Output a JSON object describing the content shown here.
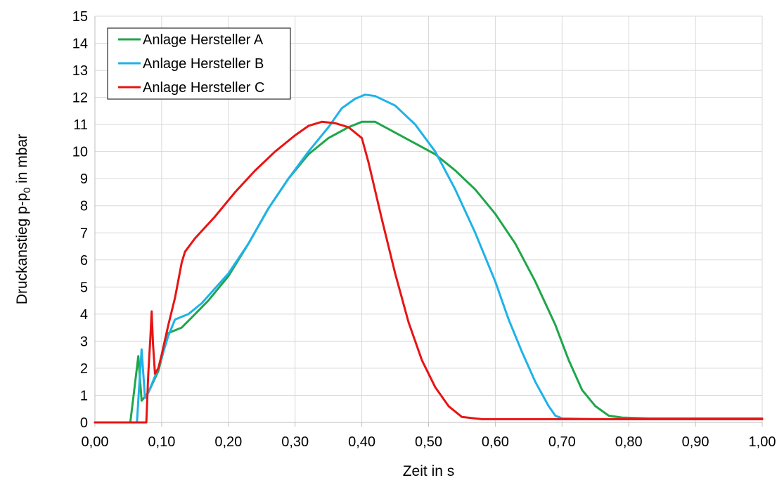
{
  "chart_data": {
    "type": "line",
    "title": "",
    "xlabel": "Zeit in s",
    "ylabel_parts": [
      "Druckanstieg p-p",
      "0",
      " in mbar"
    ],
    "xlim": [
      0,
      1.0
    ],
    "ylim": [
      0,
      15
    ],
    "grid": true,
    "legend_position": "top-left",
    "x_ticks": [
      0,
      0.1,
      0.2,
      0.3,
      0.4,
      0.5,
      0.6,
      0.7,
      0.8,
      0.9,
      1.0
    ],
    "x_tick_labels": [
      "0,00",
      "0,10",
      "0,20",
      "0,30",
      "0,40",
      "0,50",
      "0,60",
      "0,70",
      "0,80",
      "0,90",
      "1,00"
    ],
    "y_ticks": [
      0,
      1,
      2,
      3,
      4,
      5,
      6,
      7,
      8,
      9,
      10,
      11,
      12,
      13,
      14,
      15
    ],
    "y_tick_labels": [
      "0",
      "1",
      "2",
      "3",
      "4",
      "5",
      "6",
      "7",
      "8",
      "9",
      "10",
      "11",
      "12",
      "13",
      "14",
      "15"
    ],
    "series": [
      {
        "name": "Anlage Hersteller A",
        "color": "#1fa64a",
        "points": [
          [
            0,
            0
          ],
          [
            0.053,
            0
          ],
          [
            0.058,
            1.0
          ],
          [
            0.065,
            2.45
          ],
          [
            0.07,
            0.8
          ],
          [
            0.08,
            1.1
          ],
          [
            0.095,
            1.9
          ],
          [
            0.11,
            3.3
          ],
          [
            0.13,
            3.5
          ],
          [
            0.15,
            4.0
          ],
          [
            0.17,
            4.5
          ],
          [
            0.2,
            5.4
          ],
          [
            0.23,
            6.6
          ],
          [
            0.26,
            7.9
          ],
          [
            0.29,
            9.0
          ],
          [
            0.32,
            9.9
          ],
          [
            0.35,
            10.5
          ],
          [
            0.38,
            10.9
          ],
          [
            0.4,
            11.1
          ],
          [
            0.42,
            11.1
          ],
          [
            0.45,
            10.7
          ],
          [
            0.48,
            10.3
          ],
          [
            0.51,
            9.9
          ],
          [
            0.54,
            9.3
          ],
          [
            0.57,
            8.6
          ],
          [
            0.6,
            7.7
          ],
          [
            0.63,
            6.6
          ],
          [
            0.66,
            5.2
          ],
          [
            0.69,
            3.6
          ],
          [
            0.71,
            2.3
          ],
          [
            0.73,
            1.2
          ],
          [
            0.75,
            0.6
          ],
          [
            0.77,
            0.25
          ],
          [
            0.79,
            0.18
          ],
          [
            0.83,
            0.15
          ],
          [
            1.0,
            0.15
          ]
        ]
      },
      {
        "name": "Anlage Hersteller B",
        "color": "#1eb2e8",
        "points": [
          [
            0,
            0
          ],
          [
            0.063,
            0
          ],
          [
            0.066,
            1.2
          ],
          [
            0.07,
            2.7
          ],
          [
            0.075,
            0.9
          ],
          [
            0.08,
            1.1
          ],
          [
            0.095,
            2.0
          ],
          [
            0.11,
            3.2
          ],
          [
            0.12,
            3.8
          ],
          [
            0.14,
            4.0
          ],
          [
            0.16,
            4.4
          ],
          [
            0.2,
            5.5
          ],
          [
            0.23,
            6.6
          ],
          [
            0.26,
            7.9
          ],
          [
            0.29,
            9.0
          ],
          [
            0.32,
            10.0
          ],
          [
            0.35,
            10.9
          ],
          [
            0.37,
            11.6
          ],
          [
            0.39,
            11.95
          ],
          [
            0.405,
            12.1
          ],
          [
            0.42,
            12.05
          ],
          [
            0.45,
            11.7
          ],
          [
            0.48,
            11.0
          ],
          [
            0.51,
            10.0
          ],
          [
            0.54,
            8.6
          ],
          [
            0.57,
            7.0
          ],
          [
            0.6,
            5.2
          ],
          [
            0.62,
            3.8
          ],
          [
            0.64,
            2.6
          ],
          [
            0.66,
            1.5
          ],
          [
            0.68,
            0.6
          ],
          [
            0.69,
            0.25
          ],
          [
            0.7,
            0.15
          ],
          [
            0.75,
            0.12
          ],
          [
            1.0,
            0.12
          ]
        ]
      },
      {
        "name": "Anlage Hersteller C",
        "color": "#e81414",
        "points": [
          [
            0,
            0
          ],
          [
            0.077,
            0
          ],
          [
            0.08,
            1.8
          ],
          [
            0.083,
            3.1
          ],
          [
            0.085,
            4.1
          ],
          [
            0.087,
            2.9
          ],
          [
            0.09,
            1.8
          ],
          [
            0.095,
            2.0
          ],
          [
            0.1,
            2.5
          ],
          [
            0.11,
            3.6
          ],
          [
            0.12,
            4.6
          ],
          [
            0.13,
            5.9
          ],
          [
            0.135,
            6.3
          ],
          [
            0.15,
            6.8
          ],
          [
            0.18,
            7.6
          ],
          [
            0.21,
            8.5
          ],
          [
            0.24,
            9.3
          ],
          [
            0.27,
            10.0
          ],
          [
            0.3,
            10.6
          ],
          [
            0.32,
            10.95
          ],
          [
            0.34,
            11.1
          ],
          [
            0.36,
            11.05
          ],
          [
            0.38,
            10.9
          ],
          [
            0.4,
            10.5
          ],
          [
            0.41,
            9.6
          ],
          [
            0.43,
            7.5
          ],
          [
            0.45,
            5.5
          ],
          [
            0.47,
            3.7
          ],
          [
            0.49,
            2.3
          ],
          [
            0.51,
            1.3
          ],
          [
            0.53,
            0.6
          ],
          [
            0.55,
            0.2
          ],
          [
            0.58,
            0.12
          ],
          [
            1.0,
            0.12
          ]
        ]
      }
    ]
  }
}
